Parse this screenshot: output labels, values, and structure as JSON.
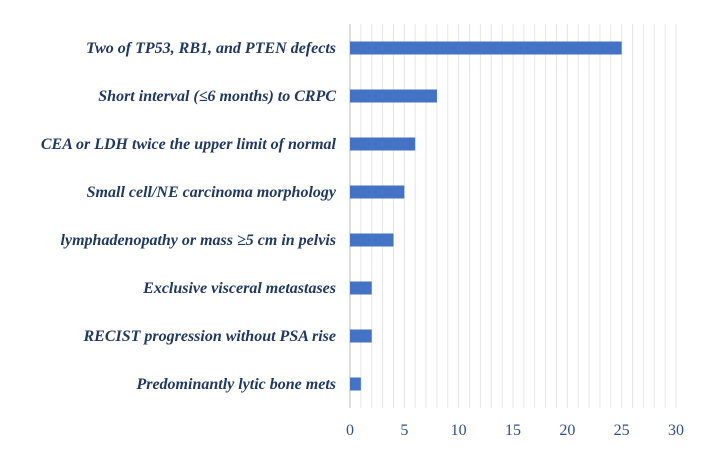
{
  "chart_data": {
    "type": "bar",
    "orientation": "horizontal",
    "categories": [
      "Two of TP53, RB1, and PTEN defects",
      "Short interval (≤6 months) to CRPC",
      "CEA or LDH twice the upper limit of normal",
      "Small cell/NE carcinoma morphology",
      "lymphadenopathy or mass ≥5 cm in pelvis",
      "Exclusive visceral metastases",
      "RECIST progression without PSA rise",
      "Predominantly lytic bone mets"
    ],
    "values": [
      25,
      8,
      6,
      5,
      4,
      2,
      2,
      1
    ],
    "xlim": [
      0,
      30
    ],
    "xticks": [
      0,
      5,
      10,
      15,
      20,
      25,
      30
    ],
    "minor_grid_step": 1,
    "grid": true,
    "bar_color": "#4472c4",
    "title": "",
    "xlabel": "",
    "ylabel": ""
  }
}
